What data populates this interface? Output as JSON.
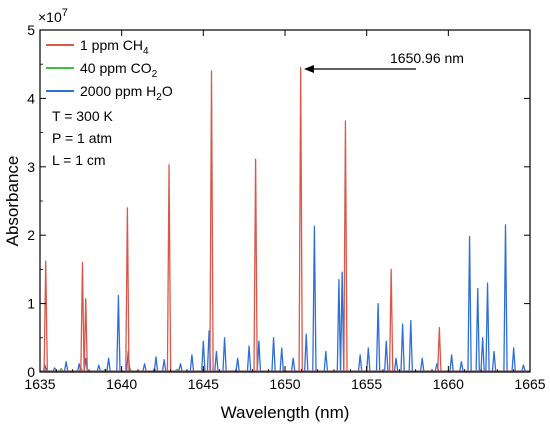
{
  "chart_data": {
    "type": "line",
    "xlabel": "Wavelength (nm)",
    "ylabel": "Absorbance",
    "y_multiplier": "×10",
    "y_multiplier_exp": "7",
    "xlim": [
      1635,
      1665
    ],
    "ylim": [
      0,
      5
    ],
    "xticks": [
      1635,
      1640,
      1645,
      1650,
      1655,
      1660,
      1665
    ],
    "yticks": [
      0,
      1,
      2,
      3,
      4,
      5
    ],
    "grid": false,
    "legend_position": "top-left",
    "conditions": [
      "T = 300 K",
      "P = 1 atm",
      "L = 1 cm"
    ],
    "annotation": {
      "text": "1650.96 nm",
      "x": 1650.96,
      "y": 4.45
    },
    "series": [
      {
        "name": "1 ppm CH",
        "name_sub": "4",
        "color": "#d9574a",
        "peaks": [
          [
            1635.35,
            1.62
          ],
          [
            1637.6,
            1.6
          ],
          [
            1637.8,
            1.07
          ],
          [
            1640.35,
            2.4
          ],
          [
            1642.9,
            3.03
          ],
          [
            1645.5,
            4.4
          ],
          [
            1648.2,
            3.11
          ],
          [
            1650.96,
            4.45
          ],
          [
            1653.7,
            3.67
          ],
          [
            1656.5,
            1.5
          ],
          [
            1659.45,
            0.65
          ]
        ]
      },
      {
        "name": "40 ppm CO",
        "name_sub": "2",
        "color": "#3fbf3f",
        "peaks": [
          [
            1635.4,
            0.05
          ],
          [
            1636.3,
            0.05
          ],
          [
            1637.5,
            0.06
          ],
          [
            1639.0,
            0.04
          ],
          [
            1640.5,
            0.05
          ],
          [
            1642.0,
            0.05
          ],
          [
            1643.4,
            0.04
          ],
          [
            1645.0,
            0.04
          ]
        ]
      },
      {
        "name": "2000 ppm H",
        "name_sub": "2",
        "name_suffix": "O",
        "color": "#2e6fd6",
        "peaks": [
          [
            1635.3,
            0.1
          ],
          [
            1635.9,
            0.06
          ],
          [
            1636.6,
            0.15
          ],
          [
            1637.4,
            0.12
          ],
          [
            1637.8,
            0.2
          ],
          [
            1638.6,
            0.1
          ],
          [
            1639.2,
            0.2
          ],
          [
            1639.8,
            1.12
          ],
          [
            1640.4,
            0.3
          ],
          [
            1641.4,
            0.12
          ],
          [
            1642.1,
            0.22
          ],
          [
            1642.6,
            0.18
          ],
          [
            1643.6,
            0.12
          ],
          [
            1644.3,
            0.25
          ],
          [
            1645.0,
            0.45
          ],
          [
            1645.35,
            0.6
          ],
          [
            1645.8,
            0.3
          ],
          [
            1646.3,
            0.5
          ],
          [
            1647.1,
            0.2
          ],
          [
            1647.8,
            0.38
          ],
          [
            1648.4,
            0.45
          ],
          [
            1649.3,
            0.5
          ],
          [
            1649.8,
            0.35
          ],
          [
            1650.5,
            0.2
          ],
          [
            1651.3,
            0.55
          ],
          [
            1651.8,
            2.13
          ],
          [
            1652.5,
            0.3
          ],
          [
            1653.3,
            1.35
          ],
          [
            1653.5,
            1.46
          ],
          [
            1654.6,
            0.25
          ],
          [
            1655.1,
            0.35
          ],
          [
            1655.7,
            1.0
          ],
          [
            1656.2,
            0.45
          ],
          [
            1656.8,
            0.2
          ],
          [
            1657.2,
            0.7
          ],
          [
            1657.7,
            0.75
          ],
          [
            1658.4,
            0.2
          ],
          [
            1659.3,
            0.12
          ],
          [
            1660.2,
            0.25
          ],
          [
            1660.8,
            0.15
          ],
          [
            1661.3,
            1.98
          ],
          [
            1661.8,
            1.22
          ],
          [
            1662.1,
            0.5
          ],
          [
            1662.4,
            1.3
          ],
          [
            1662.8,
            0.3
          ],
          [
            1663.5,
            2.15
          ],
          [
            1664.0,
            0.35
          ],
          [
            1664.6,
            0.1
          ]
        ]
      }
    ]
  }
}
